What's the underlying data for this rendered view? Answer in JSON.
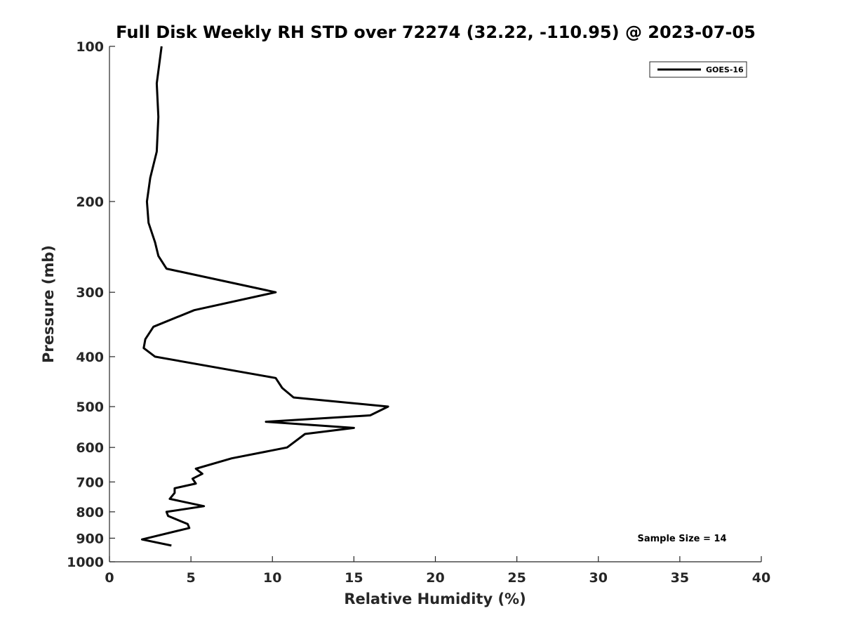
{
  "chart_data": {
    "type": "line",
    "title": "Full Disk Weekly RH STD over 72274 (32.22, -110.95) @ 2023-07-05",
    "xlabel": "Relative Humidity (%)",
    "ylabel": "Pressure (mb)",
    "xlim": [
      0,
      40
    ],
    "ylim": [
      100,
      1000
    ],
    "yscale": "log",
    "y_reversed": true,
    "x_ticks": [
      0,
      5,
      10,
      15,
      20,
      25,
      30,
      35,
      40
    ],
    "x_tick_labels": [
      "0",
      "5",
      "10",
      "15",
      "20",
      "25",
      "30",
      "35",
      "40"
    ],
    "y_ticks": [
      100,
      200,
      300,
      400,
      500,
      600,
      700,
      800,
      900,
      1000
    ],
    "y_tick_labels": [
      "100",
      "200",
      "300",
      "400",
      "500",
      "600",
      "700",
      "800",
      "900",
      "1000"
    ],
    "grid": false,
    "legend_position": "top-right",
    "annotation": "Sample Size = 14",
    "series": [
      {
        "name": "GOES-16",
        "color": "#000000",
        "x": [
          3.2,
          2.9,
          3.0,
          2.9,
          2.5,
          2.3,
          2.4,
          2.8,
          3.0,
          3.5,
          10.2,
          5.2,
          2.7,
          2.2,
          2.1,
          2.8,
          10.2,
          10.6,
          11.3,
          17.1,
          16.0,
          9.6,
          15.0,
          12.0,
          10.9,
          7.5,
          5.3,
          5.7,
          5.1,
          5.3,
          4.0,
          4.0,
          3.7,
          5.8,
          3.5,
          3.6,
          4.8,
          4.9,
          2.0,
          3.8
        ],
        "y": [
          100,
          118,
          137,
          160,
          180,
          200,
          220,
          240,
          255,
          270,
          300,
          325,
          350,
          370,
          385,
          400,
          440,
          460,
          480,
          500,
          520,
          535,
          550,
          565,
          600,
          630,
          660,
          675,
          690,
          705,
          720,
          735,
          755,
          780,
          800,
          815,
          845,
          860,
          905,
          930
        ]
      }
    ]
  }
}
